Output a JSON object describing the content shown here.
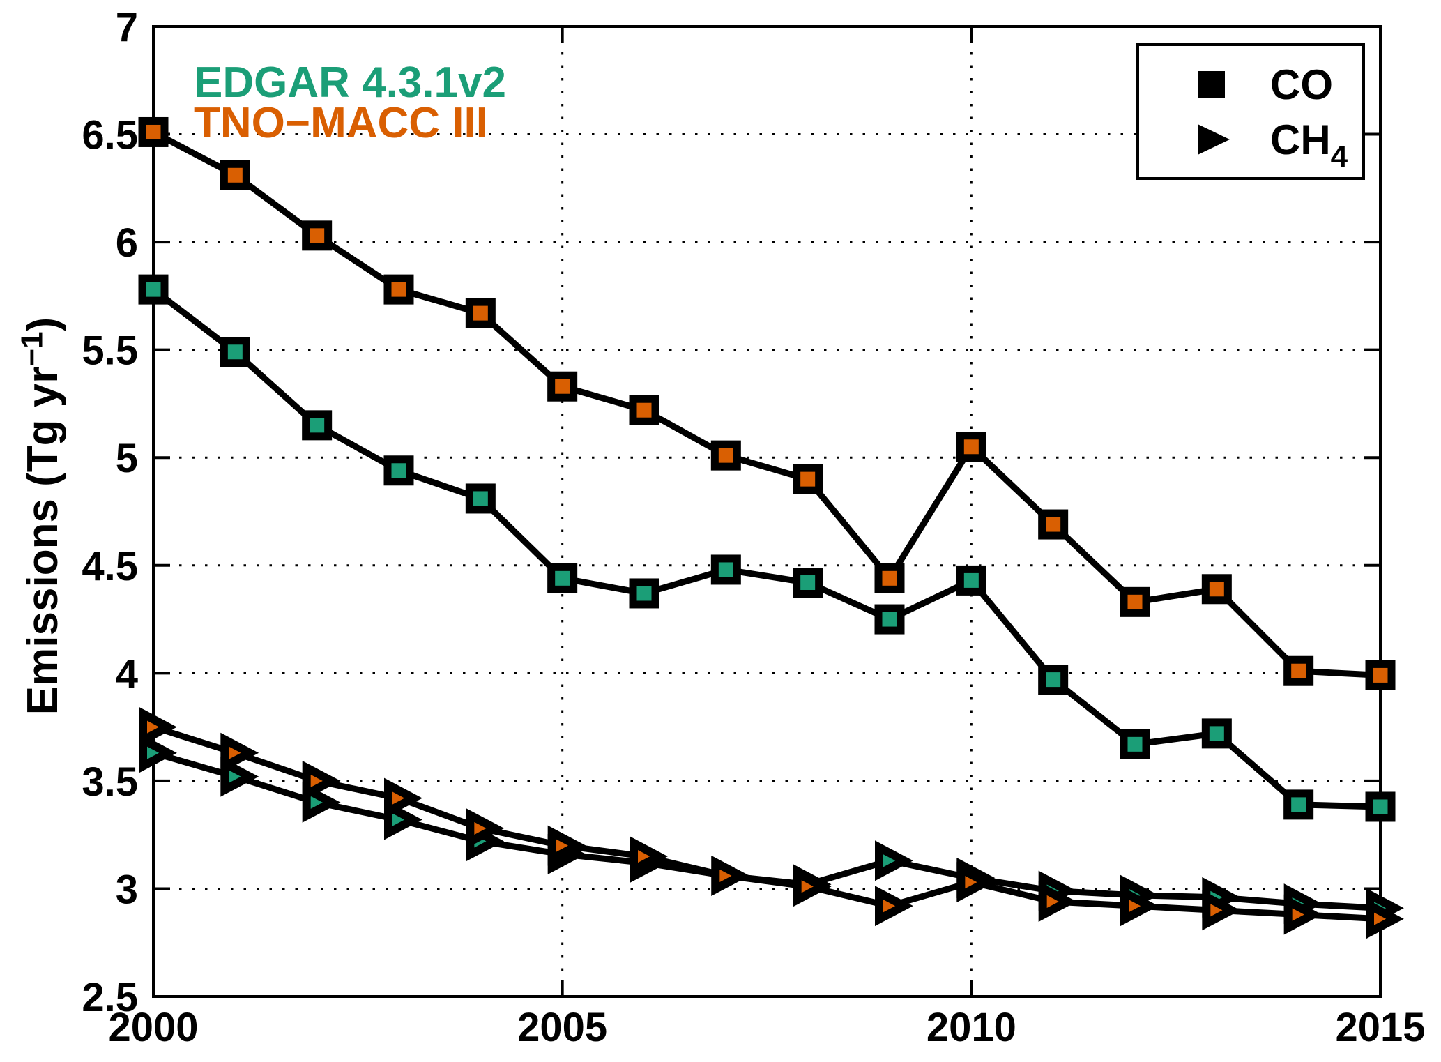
{
  "figure": {
    "background": "#ffffff",
    "annotations": {
      "edgar_label": "EDGAR 4.3.1v2",
      "edgar_color": "#1B9E77",
      "tno_label": "TNO−MACC III",
      "tno_color": "#D95F02"
    },
    "y_axis_label": {
      "main": "Emissions (Tg yr",
      "sup": "−1",
      "close": ")"
    }
  },
  "chart_data": {
    "type": "line",
    "title": "",
    "xlabel": "",
    "ylabel": "Emissions (Tg yr−1)",
    "x": [
      2000,
      2001,
      2002,
      2003,
      2004,
      2005,
      2006,
      2007,
      2008,
      2009,
      2010,
      2011,
      2012,
      2013,
      2014,
      2015
    ],
    "xlim": [
      2000,
      2015
    ],
    "ylim": [
      2.5,
      7.0
    ],
    "xticks": [
      2000,
      2005,
      2010,
      2015
    ],
    "xtick_labels": [
      "2000",
      "2005",
      "2010",
      "2015"
    ],
    "yticks": [
      2.5,
      3,
      3.5,
      4,
      4.5,
      5,
      5.5,
      6,
      6.5,
      7
    ],
    "ytick_labels": [
      "2.5",
      "3",
      "3.5",
      "4",
      "4.5",
      "5",
      "5.5",
      "6",
      "6.5",
      "7"
    ],
    "grid": "dotted",
    "legend": {
      "position": "top-right",
      "entries": [
        {
          "label": "CO",
          "marker": "square",
          "color": "#000000"
        },
        {
          "label_main": "CH",
          "label_sub": "4",
          "marker": "triangle-right",
          "color": "#000000"
        }
      ]
    },
    "series": [
      {
        "name": "EDGAR 4.3.1v2 CO",
        "source": "EDGAR 4.3.1v2",
        "species": "CO",
        "marker": "square",
        "color": "#1B9E77",
        "values": [
          5.78,
          5.49,
          5.15,
          4.94,
          4.81,
          4.44,
          4.37,
          4.48,
          4.42,
          4.25,
          4.43,
          3.97,
          3.67,
          3.72,
          3.39,
          3.38
        ]
      },
      {
        "name": "TNO-MACC III CO",
        "source": "TNO−MACC III",
        "species": "CO",
        "marker": "square",
        "color": "#D95F02",
        "values": [
          6.51,
          6.31,
          6.03,
          5.78,
          5.67,
          5.33,
          5.22,
          5.01,
          4.9,
          4.44,
          5.05,
          4.69,
          4.33,
          4.39,
          4.01,
          3.99
        ]
      },
      {
        "name": "EDGAR 4.3.1v2 CH4",
        "source": "EDGAR 4.3.1v2",
        "species": "CH4",
        "marker": "triangle-right",
        "color": "#1B9E77",
        "values": [
          3.63,
          3.52,
          3.4,
          3.32,
          3.22,
          3.16,
          3.12,
          3.06,
          3.02,
          3.13,
          3.05,
          2.99,
          2.97,
          2.96,
          2.93,
          2.91
        ]
      },
      {
        "name": "TNO-MACC III CH4",
        "source": "TNO−MACC III",
        "species": "CH4",
        "marker": "triangle-right",
        "color": "#D95F02",
        "values": [
          3.75,
          3.63,
          3.5,
          3.42,
          3.28,
          3.2,
          3.15,
          3.06,
          3.01,
          2.92,
          3.03,
          2.94,
          2.92,
          2.9,
          2.88,
          2.86
        ]
      }
    ]
  }
}
